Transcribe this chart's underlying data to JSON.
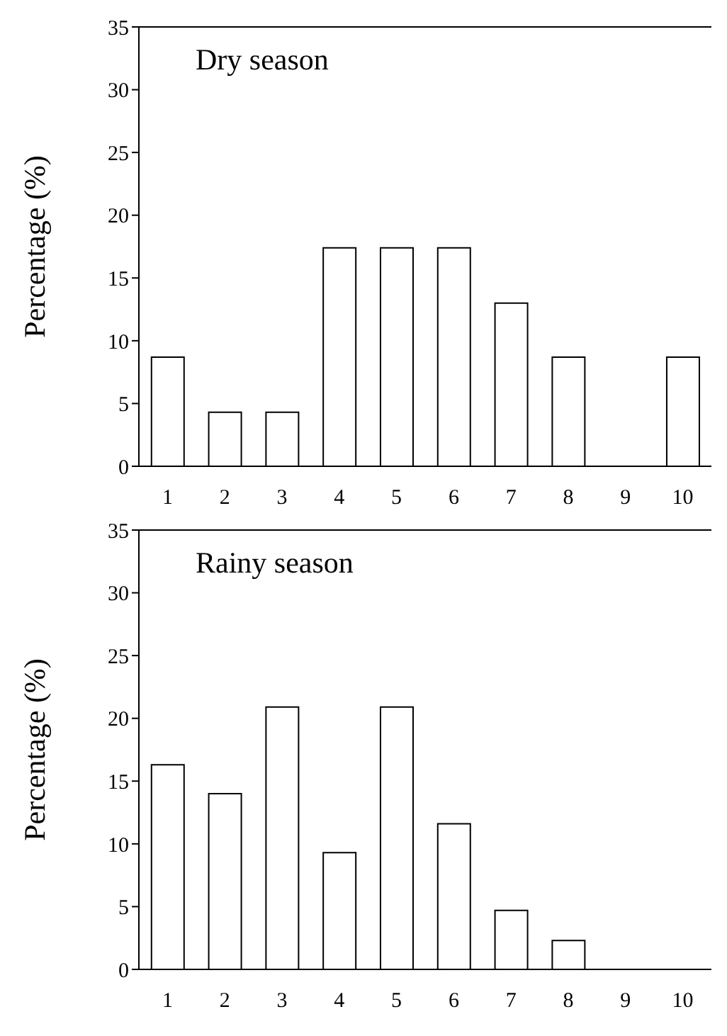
{
  "chart_data": [
    {
      "type": "bar",
      "title": "Dry season",
      "ylabel": "Percentage (%)",
      "categories": [
        "1",
        "2",
        "3",
        "4",
        "5",
        "6",
        "7",
        "8",
        "9",
        "10"
      ],
      "values": [
        8.7,
        4.3,
        4.3,
        17.4,
        17.4,
        17.4,
        13.0,
        8.7,
        0,
        8.7
      ],
      "color": "#ffffff",
      "ylim": [
        0,
        35
      ],
      "yticks": [
        0,
        5,
        10,
        15,
        20,
        25,
        30,
        35
      ],
      "grid": false,
      "legend": false
    },
    {
      "type": "bar",
      "title": "Rainy season",
      "ylabel": "Percentage (%)",
      "categories": [
        "1",
        "2",
        "3",
        "4",
        "5",
        "6",
        "7",
        "8",
        "9",
        "10"
      ],
      "values": [
        16.3,
        14.0,
        20.9,
        9.3,
        20.9,
        11.6,
        4.7,
        2.3,
        0,
        0
      ],
      "color": "#ffffff",
      "ylim": [
        0,
        35
      ],
      "yticks": [
        0,
        5,
        10,
        15,
        20,
        25,
        30,
        35
      ],
      "grid": false,
      "legend": false
    }
  ]
}
